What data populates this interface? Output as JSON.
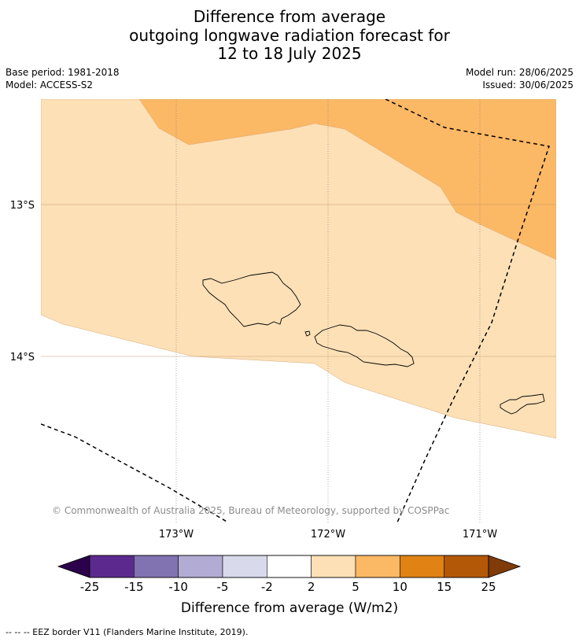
{
  "title": {
    "line1": "Difference from average",
    "line2": "outgoing longwave radiation forecast for",
    "line3": "12 to 18 July 2025"
  },
  "meta": {
    "base_period": "Base period: 1981-2018",
    "model": "Model: ACCESS-S2",
    "model_run": "Model run: 28/06/2025",
    "issued": "Issued: 30/06/2025"
  },
  "map": {
    "region": "Samoa",
    "lon_ticks": [
      "173°W",
      "172°W",
      "171°W"
    ],
    "lat_ticks": [
      "13°S",
      "14°S"
    ],
    "credit": "© Commonwealth of Australia 2025, Bureau of Meteorology, supported by COSPPac",
    "colors": {
      "band_2_5": "#fde0b6",
      "band_5_10": "#fbb865",
      "land_outline": "#000000",
      "eez_line": "#000000"
    }
  },
  "colorbar": {
    "title": "Difference from average (W/m2)",
    "tick_labels": [
      "-25",
      "-15",
      "-10",
      "-5",
      "-2",
      "2",
      "5",
      "10",
      "15",
      "25"
    ],
    "colors": [
      "#2d004b",
      "#5c2a8e",
      "#8173b1",
      "#b2abd3",
      "#d8daeb",
      "#ffffff",
      "#fde0b6",
      "#fbb865",
      "#e08214",
      "#b35806",
      "#7f3b08"
    ]
  },
  "footer": "--  --  -- EEZ border V11 (Flanders Marine Institute, 2019)."
}
